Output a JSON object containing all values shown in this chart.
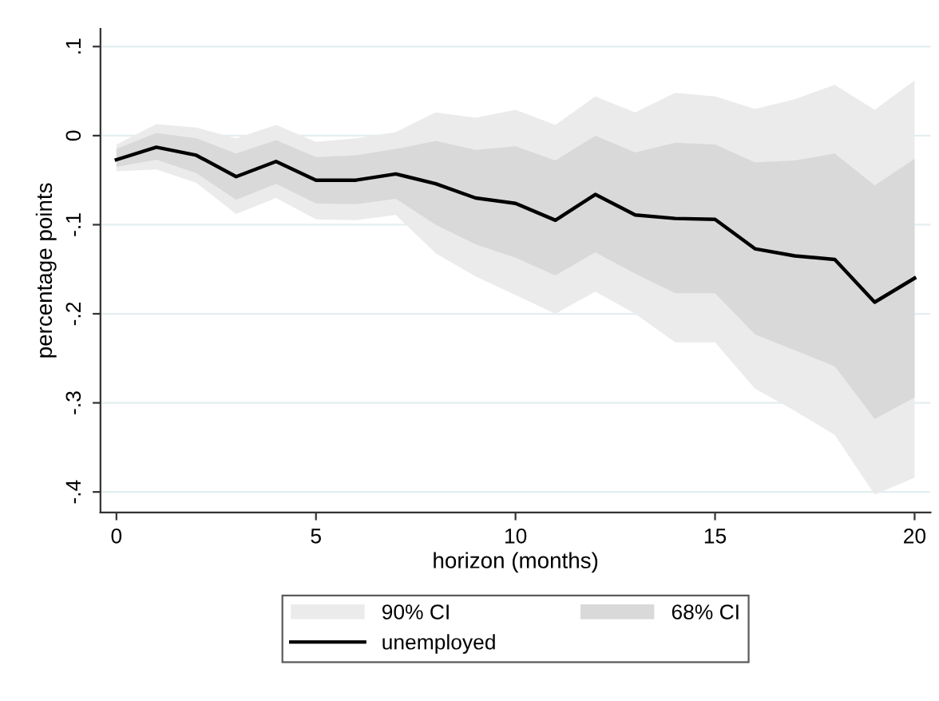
{
  "chart_data": {
    "type": "line",
    "xlabel": "horizon (months)",
    "ylabel": "percentage points",
    "x": [
      0,
      1,
      2,
      3,
      4,
      5,
      6,
      7,
      8,
      9,
      10,
      11,
      12,
      13,
      14,
      15,
      16,
      17,
      18,
      19,
      20
    ],
    "series": [
      {
        "name": "90% CI",
        "type": "area",
        "color": "#ebebeb",
        "values": [
          null,
          null,
          null,
          null,
          null,
          null,
          null,
          null,
          null,
          null,
          null,
          null,
          null,
          null,
          null,
          null,
          null,
          null,
          null,
          null,
          null
        ],
        "lower": [
          -0.04,
          -0.038,
          -0.053,
          -0.088,
          -0.07,
          -0.094,
          -0.095,
          -0.089,
          -0.132,
          -0.158,
          -0.179,
          -0.2,
          -0.175,
          -0.2,
          -0.232,
          -0.232,
          -0.284,
          -0.309,
          -0.336,
          -0.403,
          -0.384
        ],
        "upper": [
          -0.01,
          0.013,
          0.009,
          -0.003,
          0.012,
          -0.007,
          -0.003,
          0.004,
          0.026,
          0.02,
          0.029,
          0.012,
          0.044,
          0.026,
          0.048,
          0.044,
          0.03,
          0.041,
          0.057,
          0.029,
          0.062
        ]
      },
      {
        "name": "68% CI",
        "type": "area",
        "color": "#d9d9d9",
        "values": [
          null,
          null,
          null,
          null,
          null,
          null,
          null,
          null,
          null,
          null,
          null,
          null,
          null,
          null,
          null,
          null,
          null,
          null,
          null,
          null,
          null
        ],
        "lower": [
          -0.035,
          -0.027,
          -0.042,
          -0.072,
          -0.054,
          -0.076,
          -0.077,
          -0.071,
          -0.1,
          -0.122,
          -0.137,
          -0.157,
          -0.131,
          -0.155,
          -0.177,
          -0.177,
          -0.223,
          -0.241,
          -0.259,
          -0.318,
          -0.294
        ],
        "upper": [
          -0.015,
          0.003,
          -0.003,
          -0.02,
          -0.005,
          -0.024,
          -0.022,
          -0.015,
          -0.006,
          -0.016,
          -0.012,
          -0.028,
          0.0,
          -0.019,
          -0.008,
          -0.01,
          -0.03,
          -0.028,
          -0.02,
          -0.056,
          -0.026
        ]
      },
      {
        "name": "unemployed",
        "color": "#000000",
        "values": [
          -0.027,
          -0.013,
          -0.022,
          -0.046,
          -0.029,
          -0.05,
          -0.05,
          -0.043,
          -0.054,
          -0.07,
          -0.076,
          -0.095,
          -0.066,
          -0.089,
          -0.093,
          -0.094,
          -0.127,
          -0.135,
          -0.139,
          -0.187,
          -0.16
        ]
      }
    ],
    "xlim": [
      -0.4,
      20.4
    ],
    "ylim": [
      -0.423,
      0.12
    ],
    "xticks": [
      0,
      5,
      10,
      15,
      20
    ],
    "yticks": [
      {
        "value": -0.4,
        "label": "-.4"
      },
      {
        "value": -0.3,
        "label": "-.3"
      },
      {
        "value": -0.2,
        "label": "-.2"
      },
      {
        "value": -0.1,
        "label": "-.1"
      },
      0,
      {
        "value": 0.1,
        "label": ".1"
      }
    ],
    "grid": "y",
    "legend": "bottom"
  }
}
